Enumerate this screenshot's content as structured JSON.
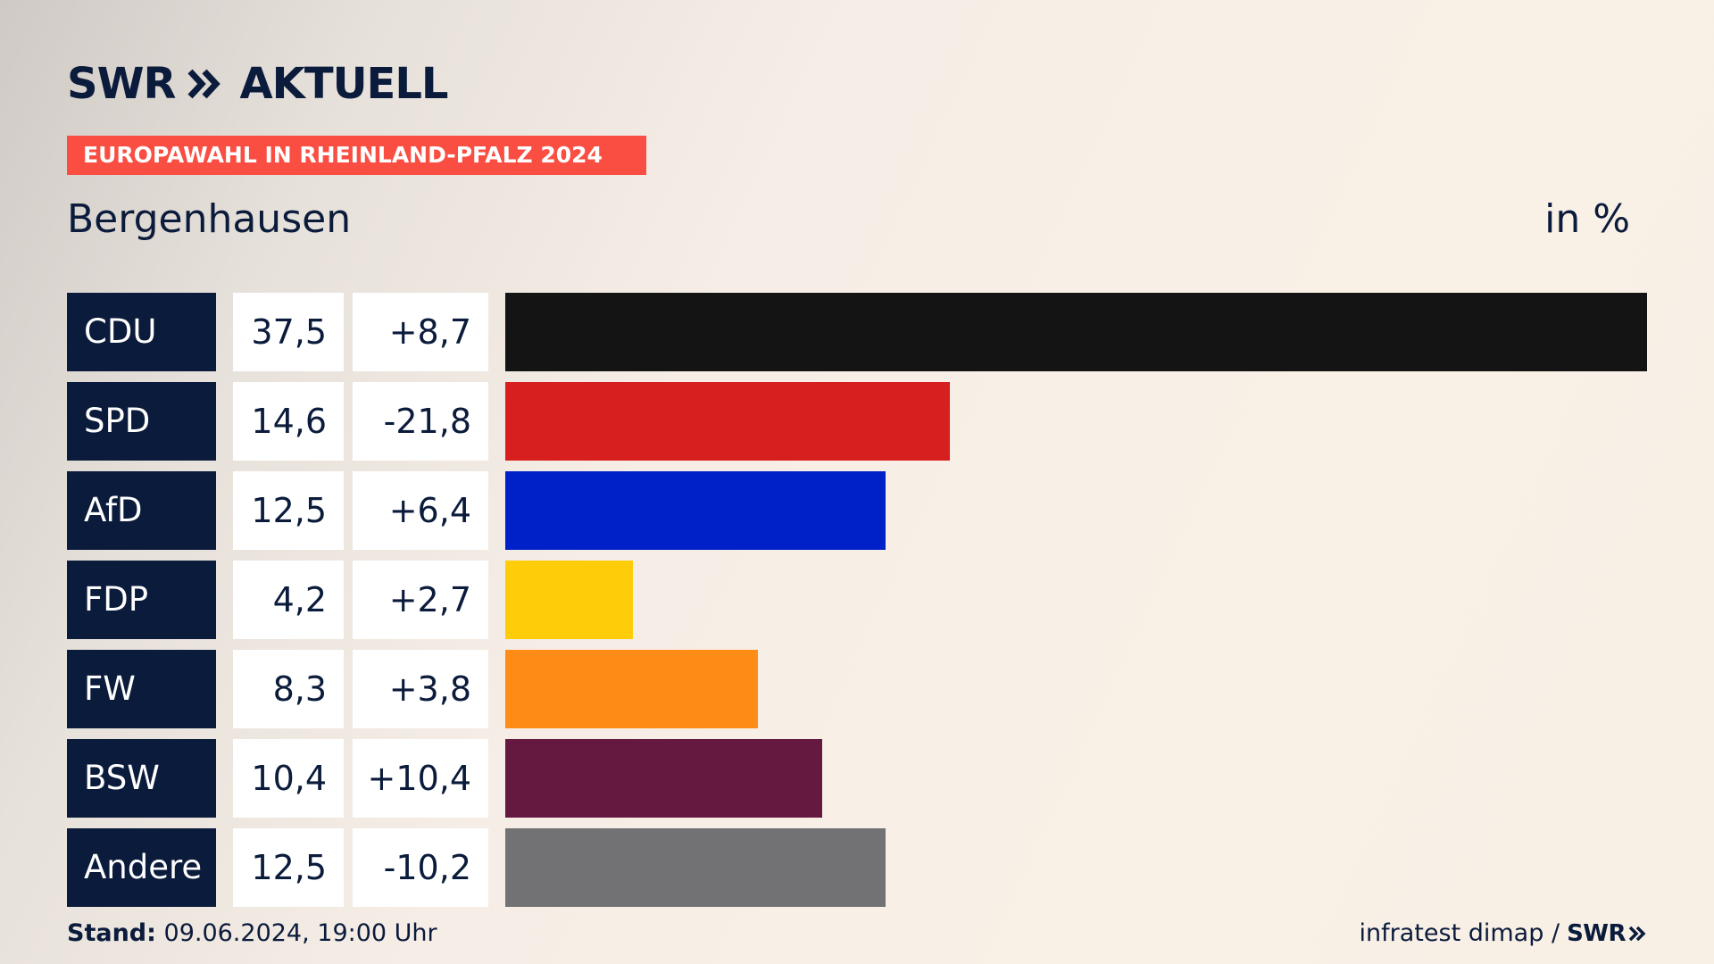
{
  "brand": {
    "logo_left": "SWR",
    "logo_right": "AKTUELL",
    "banner": "EUROPAWAHL IN RHEINLAND-PFALZ 2024"
  },
  "header": {
    "region": "Bergenhausen",
    "unit": "in %"
  },
  "colors": {
    "navy": "#0b1b3b",
    "banner": "#fa4e43"
  },
  "chart_data": {
    "type": "bar",
    "orientation": "horizontal",
    "unit": "in %",
    "max_value": 37.5,
    "categories": [
      "CDU",
      "SPD",
      "AfD",
      "FDP",
      "FW",
      "BSW",
      "Andere"
    ],
    "values": [
      37.5,
      14.6,
      12.5,
      4.2,
      8.3,
      10.4,
      12.5
    ],
    "rows": [
      {
        "party": "CDU",
        "value": "37,5",
        "diff": "+8,7",
        "num": 37.5,
        "color": "#141414"
      },
      {
        "party": "SPD",
        "value": "14,6",
        "diff": "-21,8",
        "num": 14.6,
        "color": "#d71f1f"
      },
      {
        "party": "AfD",
        "value": "12,5",
        "diff": "+6,4",
        "num": 12.5,
        "color": "#0021c8"
      },
      {
        "party": "FDP",
        "value": "4,2",
        "diff": "+2,7",
        "num": 4.2,
        "color": "#ffcc0a"
      },
      {
        "party": "FW",
        "value": "8,3",
        "diff": "+3,8",
        "num": 8.3,
        "color": "#ff8c17"
      },
      {
        "party": "BSW",
        "value": "10,4",
        "diff": "+10,4",
        "num": 10.4,
        "color": "#661940"
      },
      {
        "party": "Andere",
        "value": "12,5",
        "diff": "-10,2",
        "num": 12.5,
        "color": "#727274"
      }
    ]
  },
  "footer": {
    "stand_label": "Stand:",
    "stand_value": "09.06.2024, 19:00 Uhr",
    "source": "infratest dimap /",
    "source_logo": "SWR"
  }
}
